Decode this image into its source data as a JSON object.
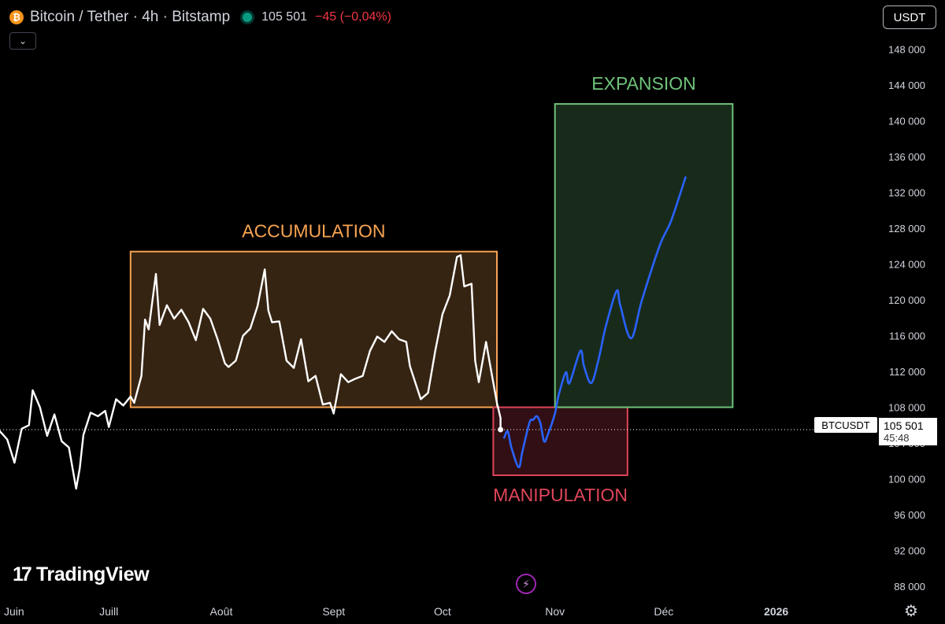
{
  "header": {
    "symbol_title": "Bitcoin / Tether · 4h · Bitstamp",
    "icon": "bitcoin-icon",
    "price": "105 501",
    "change": "−45 (−0,04%)",
    "change_color": "#f23645"
  },
  "controls": {
    "collapse_icon": "chevron-down-icon",
    "currency": "USDT",
    "settings_icon": "gear-icon",
    "replay_icon": "lightning-icon"
  },
  "branding": {
    "logo_text": "TradingView"
  },
  "price_badge": {
    "symbol": "BTCUSDT",
    "price": "105 501",
    "countdown": "45:48"
  },
  "chart_data": {
    "type": "line",
    "y_axis": {
      "range": [
        86500,
        150000
      ],
      "ticks": [
        88000,
        92000,
        96000,
        100000,
        104000,
        108000,
        112000,
        116000,
        120000,
        124000,
        128000,
        132000,
        136000,
        140000,
        144000,
        148000
      ],
      "tick_labels": [
        "88 000",
        "92 000",
        "96 000",
        "100 000",
        "104 000",
        "108 000",
        "112 000",
        "116 000",
        "120 000",
        "124 000",
        "128 000",
        "132 000",
        "136 000",
        "140 000",
        "144 000",
        "148 000"
      ]
    },
    "x_axis": {
      "range": [
        "2025-06-01",
        "2026-01-28"
      ],
      "ticks": [
        "2025-06-01",
        "2025-07-01",
        "2025-08-01",
        "2025-09-01",
        "2025-10-01",
        "2025-11-01",
        "2025-12-01",
        "2026-01-01"
      ],
      "tick_labels": [
        "Juin",
        "Juill",
        "Août",
        "Sept",
        "Oct",
        "Nov",
        "Déc",
        "2026"
      ]
    },
    "last_price": 105501,
    "series": [
      {
        "kind": "price",
        "color": "#ffffff",
        "points": [
          [
            "2025-06-01",
            105300
          ],
          [
            "2025-06-03",
            104400
          ],
          [
            "2025-06-05",
            101800
          ],
          [
            "2025-06-07",
            105600
          ],
          [
            "2025-06-09",
            106000
          ],
          [
            "2025-06-10",
            109900
          ],
          [
            "2025-06-12",
            108000
          ],
          [
            "2025-06-14",
            104800
          ],
          [
            "2025-06-16",
            107200
          ],
          [
            "2025-06-18",
            104200
          ],
          [
            "2025-06-20",
            103500
          ],
          [
            "2025-06-22",
            98900
          ],
          [
            "2025-06-23",
            101200
          ],
          [
            "2025-06-24",
            104900
          ],
          [
            "2025-06-26",
            107400
          ],
          [
            "2025-06-28",
            107000
          ],
          [
            "2025-06-30",
            107600
          ],
          [
            "2025-07-01",
            105800
          ],
          [
            "2025-07-03",
            108900
          ],
          [
            "2025-07-05",
            108200
          ],
          [
            "2025-07-07",
            109200
          ],
          [
            "2025-07-08",
            108500
          ],
          [
            "2025-07-10",
            111500
          ],
          [
            "2025-07-11",
            117800
          ],
          [
            "2025-07-12",
            116700
          ],
          [
            "2025-07-14",
            122900
          ],
          [
            "2025-07-15",
            117200
          ],
          [
            "2025-07-17",
            119400
          ],
          [
            "2025-07-19",
            117900
          ],
          [
            "2025-07-21",
            118900
          ],
          [
            "2025-07-23",
            117500
          ],
          [
            "2025-07-25",
            115500
          ],
          [
            "2025-07-27",
            119000
          ],
          [
            "2025-07-29",
            117900
          ],
          [
            "2025-07-31",
            115600
          ],
          [
            "2025-08-02",
            112900
          ],
          [
            "2025-08-03",
            112500
          ],
          [
            "2025-08-05",
            113200
          ],
          [
            "2025-08-07",
            116000
          ],
          [
            "2025-08-09",
            116800
          ],
          [
            "2025-08-11",
            119300
          ],
          [
            "2025-08-13",
            123400
          ],
          [
            "2025-08-14",
            118800
          ],
          [
            "2025-08-15",
            117500
          ],
          [
            "2025-08-17",
            117600
          ],
          [
            "2025-08-19",
            113200
          ],
          [
            "2025-08-21",
            112400
          ],
          [
            "2025-08-23",
            115600
          ],
          [
            "2025-08-25",
            110900
          ],
          [
            "2025-08-27",
            111500
          ],
          [
            "2025-08-29",
            108300
          ],
          [
            "2025-08-31",
            108500
          ],
          [
            "2025-09-01",
            107300
          ],
          [
            "2025-09-03",
            111700
          ],
          [
            "2025-09-05",
            110800
          ],
          [
            "2025-09-07",
            111200
          ],
          [
            "2025-09-09",
            111500
          ],
          [
            "2025-09-11",
            114300
          ],
          [
            "2025-09-13",
            115900
          ],
          [
            "2025-09-15",
            115300
          ],
          [
            "2025-09-17",
            116500
          ],
          [
            "2025-09-19",
            115600
          ],
          [
            "2025-09-21",
            115300
          ],
          [
            "2025-09-22",
            112600
          ],
          [
            "2025-09-25",
            108900
          ],
          [
            "2025-09-27",
            109600
          ],
          [
            "2025-09-29",
            114300
          ],
          [
            "2025-10-01",
            118400
          ],
          [
            "2025-10-03",
            120500
          ],
          [
            "2025-10-05",
            124800
          ],
          [
            "2025-10-06",
            125000
          ],
          [
            "2025-10-07",
            121500
          ],
          [
            "2025-10-09",
            121800
          ],
          [
            "2025-10-10",
            113200
          ],
          [
            "2025-10-11",
            110800
          ],
          [
            "2025-10-13",
            115300
          ],
          [
            "2025-10-14",
            113000
          ],
          [
            "2025-10-16",
            108500
          ],
          [
            "2025-10-17",
            106800
          ],
          [
            "2025-10-17",
            105501
          ]
        ]
      },
      {
        "kind": "projection",
        "color": "#2962ff",
        "points": [
          [
            "2025-10-18",
            104600
          ],
          [
            "2025-10-19",
            105300
          ],
          [
            "2025-10-20",
            103500
          ],
          [
            "2025-10-22",
            101300
          ],
          [
            "2025-10-23",
            103000
          ],
          [
            "2025-10-25",
            106300
          ],
          [
            "2025-10-26",
            106600
          ],
          [
            "2025-10-27",
            107000
          ],
          [
            "2025-10-28",
            106200
          ],
          [
            "2025-10-29",
            104200
          ],
          [
            "2025-10-30",
            104900
          ],
          [
            "2025-11-01",
            107300
          ],
          [
            "2025-11-02",
            109300
          ],
          [
            "2025-11-04",
            111900
          ],
          [
            "2025-11-05",
            110700
          ],
          [
            "2025-11-08",
            114300
          ],
          [
            "2025-11-09",
            112600
          ],
          [
            "2025-11-11",
            110700
          ],
          [
            "2025-11-13",
            113300
          ],
          [
            "2025-11-15",
            117000
          ],
          [
            "2025-11-18",
            121000
          ],
          [
            "2025-11-19",
            119400
          ],
          [
            "2025-11-22",
            115700
          ],
          [
            "2025-11-25",
            120000
          ],
          [
            "2025-11-30",
            126200
          ],
          [
            "2025-12-03",
            128800
          ],
          [
            "2025-12-07",
            133700
          ]
        ]
      }
    ],
    "zones": [
      {
        "label": "ACCUMULATION",
        "x": [
          "2025-07-07",
          "2025-10-16"
        ],
        "y": [
          108000,
          125400
        ],
        "stroke": "#f7a452",
        "fill": "rgba(247,164,82,0.22)"
      },
      {
        "label": "MANIPULATION",
        "x": [
          "2025-10-15",
          "2025-11-21"
        ],
        "y": [
          100400,
          108000
        ],
        "stroke": "#e0455a",
        "fill": "rgba(224,69,90,0.22)"
      },
      {
        "label": "EXPANSION",
        "x": [
          "2025-11-01",
          "2025-12-20"
        ],
        "y": [
          108000,
          141900
        ],
        "stroke": "#6fc27a",
        "fill": "rgba(111,194,122,0.22)"
      }
    ]
  }
}
